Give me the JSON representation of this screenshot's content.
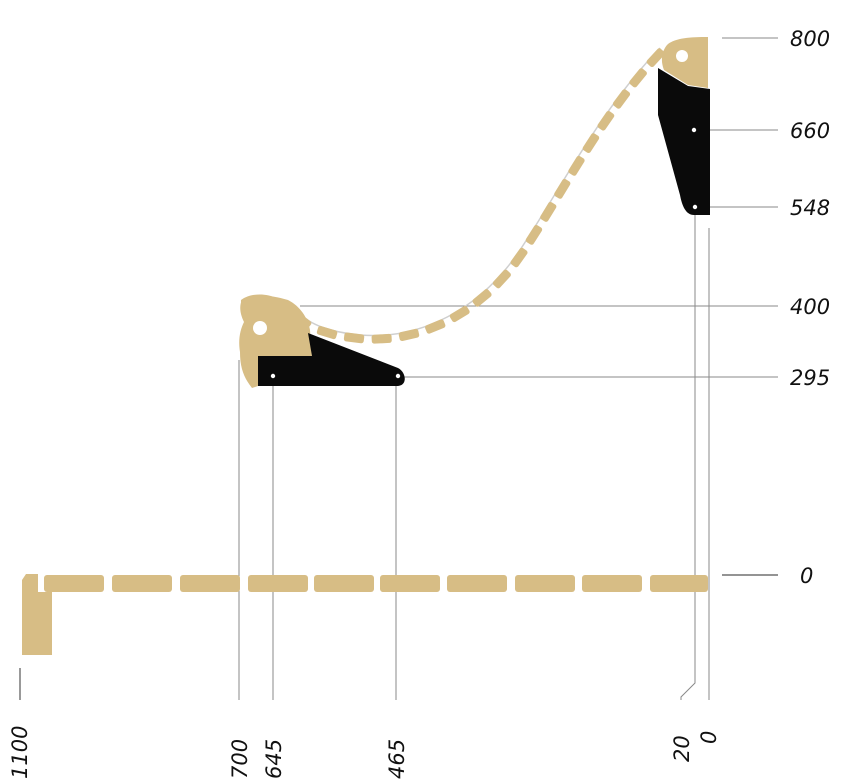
{
  "colors": {
    "slat": "#d7bd85",
    "slat_dark": "#c9ad72",
    "bracket": "#0a0a0a",
    "guide": "#8a8a8a"
  },
  "vertical_dimensions": [
    {
      "id": "800",
      "label": "800"
    },
    {
      "id": "660",
      "label": "660"
    },
    {
      "id": "548",
      "label": "548"
    },
    {
      "id": "400",
      "label": "400"
    },
    {
      "id": "295",
      "label": "295"
    },
    {
      "id": "0",
      "label": "0"
    }
  ],
  "horizontal_dimensions": [
    {
      "id": "1100",
      "label": "1100"
    },
    {
      "id": "700",
      "label": "700"
    },
    {
      "id": "645",
      "label": "645"
    },
    {
      "id": "465",
      "label": "465"
    },
    {
      "id": "20",
      "label": "20"
    },
    {
      "id": "0",
      "label": "0"
    }
  ]
}
